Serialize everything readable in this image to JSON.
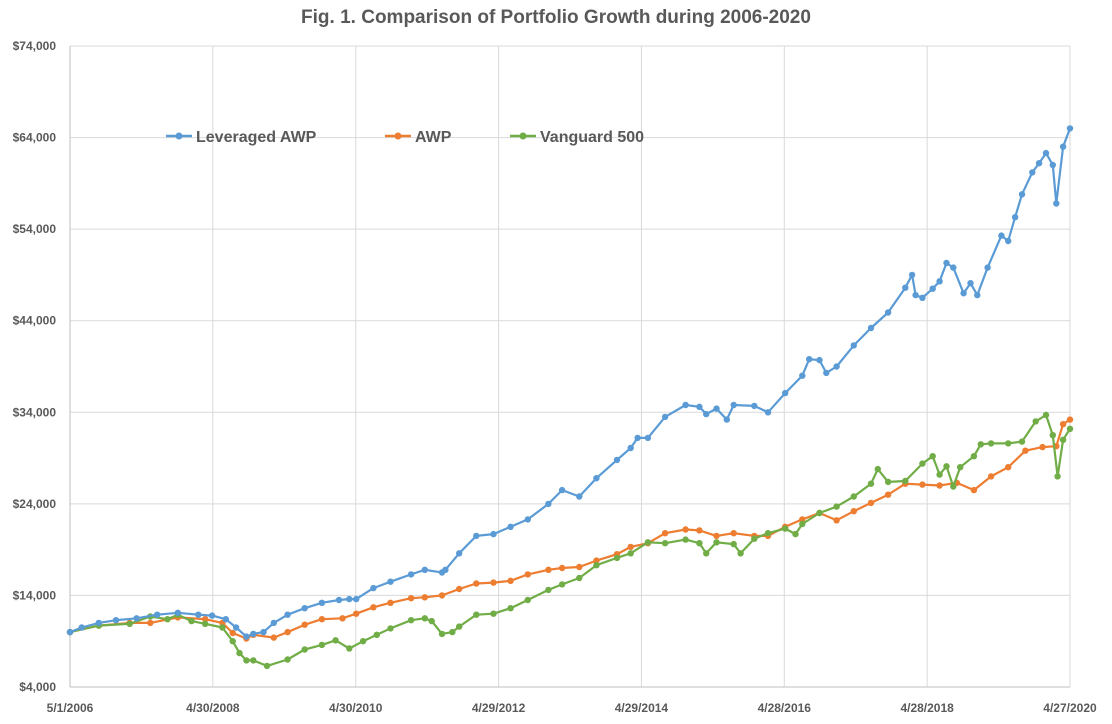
{
  "chart_data": {
    "type": "line",
    "title": "Fig. 1. Comparison of Portfolio Growth during 2006-2020",
    "xlabel": "",
    "ylabel": "",
    "x_start": "5/1/2006",
    "x_end": "4/27/2020",
    "ylim": [
      4000,
      74000
    ],
    "yticks": [
      4000,
      14000,
      24000,
      34000,
      44000,
      54000,
      64000,
      74000
    ],
    "ytick_labels": [
      "$4,000",
      "$14,000",
      "$24,000",
      "$34,000",
      "$44,000",
      "$54,000",
      "$64,000",
      "$74,000"
    ],
    "xtick_labels": [
      "5/1/2006",
      "4/30/2008",
      "4/30/2010",
      "4/29/2012",
      "4/29/2014",
      "4/28/2016",
      "4/28/2018",
      "4/27/2020"
    ],
    "grid": true,
    "legend_position": "top-left",
    "series": [
      {
        "name": "Leveraged AWP",
        "color": "#5b9bd5",
        "values": [
          [
            2006.33,
            10000
          ],
          [
            2006.5,
            10500
          ],
          [
            2006.75,
            11000
          ],
          [
            2007.0,
            11300
          ],
          [
            2007.3,
            11500
          ],
          [
            2007.6,
            11900
          ],
          [
            2007.9,
            12100
          ],
          [
            2008.2,
            11900
          ],
          [
            2008.4,
            11800
          ],
          [
            2008.6,
            11400
          ],
          [
            2008.75,
            10500
          ],
          [
            2008.9,
            9500
          ],
          [
            2009.0,
            9800
          ],
          [
            2009.15,
            10000
          ],
          [
            2009.3,
            11000
          ],
          [
            2009.5,
            11900
          ],
          [
            2009.75,
            12600
          ],
          [
            2010.0,
            13200
          ],
          [
            2010.25,
            13500
          ],
          [
            2010.4,
            13600
          ],
          [
            2010.5,
            13600
          ],
          [
            2010.75,
            14800
          ],
          [
            2011.0,
            15500
          ],
          [
            2011.3,
            16300
          ],
          [
            2011.5,
            16800
          ],
          [
            2011.75,
            16500
          ],
          [
            2011.8,
            16800
          ],
          [
            2012.0,
            18600
          ],
          [
            2012.25,
            20500
          ],
          [
            2012.5,
            20700
          ],
          [
            2012.75,
            21500
          ],
          [
            2013.0,
            22300
          ],
          [
            2013.3,
            24000
          ],
          [
            2013.5,
            25500
          ],
          [
            2013.75,
            24800
          ],
          [
            2014.0,
            26800
          ],
          [
            2014.3,
            28800
          ],
          [
            2014.5,
            30100
          ],
          [
            2014.6,
            31200
          ],
          [
            2014.75,
            31200
          ],
          [
            2015.0,
            33500
          ],
          [
            2015.3,
            34800
          ],
          [
            2015.5,
            34600
          ],
          [
            2015.6,
            33800
          ],
          [
            2015.75,
            34400
          ],
          [
            2015.9,
            33200
          ],
          [
            2016.0,
            34800
          ],
          [
            2016.3,
            34700
          ],
          [
            2016.5,
            34000
          ],
          [
            2016.75,
            36100
          ],
          [
            2017.0,
            38000
          ],
          [
            2017.1,
            39800
          ],
          [
            2017.25,
            39700
          ],
          [
            2017.35,
            38300
          ],
          [
            2017.5,
            39000
          ],
          [
            2017.75,
            41300
          ],
          [
            2018.0,
            43200
          ],
          [
            2018.25,
            44900
          ],
          [
            2018.5,
            47600
          ],
          [
            2018.6,
            49000
          ],
          [
            2018.65,
            46800
          ],
          [
            2018.75,
            46500
          ],
          [
            2018.9,
            47500
          ],
          [
            2019.0,
            48300
          ],
          [
            2019.1,
            50300
          ],
          [
            2019.2,
            49800
          ],
          [
            2019.35,
            47000
          ],
          [
            2019.45,
            48100
          ],
          [
            2019.55,
            46800
          ],
          [
            2019.7,
            49800
          ],
          [
            2019.9,
            53300
          ],
          [
            2020.0,
            52700
          ],
          [
            2020.1,
            55300
          ],
          [
            2020.2,
            57800
          ],
          [
            2020.35,
            60200
          ],
          [
            2020.45,
            61200
          ],
          [
            2020.55,
            62300
          ],
          [
            2020.65,
            61000
          ],
          [
            2020.7,
            56800
          ],
          [
            2020.8,
            63000
          ],
          [
            2020.9,
            65000
          ]
        ]
      },
      {
        "name": "AWP",
        "color": "#ed7d31",
        "values": [
          [
            2006.33,
            10000
          ],
          [
            2006.75,
            10700
          ],
          [
            2007.2,
            11000
          ],
          [
            2007.5,
            11000
          ],
          [
            2007.9,
            11600
          ],
          [
            2008.3,
            11400
          ],
          [
            2008.55,
            11000
          ],
          [
            2008.7,
            9900
          ],
          [
            2008.9,
            9300
          ],
          [
            2009.0,
            9700
          ],
          [
            2009.3,
            9400
          ],
          [
            2009.5,
            10000
          ],
          [
            2009.75,
            10800
          ],
          [
            2010.0,
            11400
          ],
          [
            2010.3,
            11500
          ],
          [
            2010.5,
            12000
          ],
          [
            2010.75,
            12700
          ],
          [
            2011.0,
            13200
          ],
          [
            2011.3,
            13700
          ],
          [
            2011.5,
            13800
          ],
          [
            2011.75,
            14000
          ],
          [
            2012.0,
            14700
          ],
          [
            2012.25,
            15300
          ],
          [
            2012.5,
            15400
          ],
          [
            2012.75,
            15600
          ],
          [
            2013.0,
            16300
          ],
          [
            2013.3,
            16800
          ],
          [
            2013.5,
            17000
          ],
          [
            2013.75,
            17100
          ],
          [
            2014.0,
            17800
          ],
          [
            2014.3,
            18500
          ],
          [
            2014.5,
            19300
          ],
          [
            2014.75,
            19700
          ],
          [
            2015.0,
            20800
          ],
          [
            2015.3,
            21200
          ],
          [
            2015.5,
            21100
          ],
          [
            2015.75,
            20500
          ],
          [
            2016.0,
            20800
          ],
          [
            2016.3,
            20500
          ],
          [
            2016.5,
            20500
          ],
          [
            2016.75,
            21500
          ],
          [
            2017.0,
            22300
          ],
          [
            2017.25,
            23000
          ],
          [
            2017.5,
            22200
          ],
          [
            2017.75,
            23200
          ],
          [
            2018.0,
            24100
          ],
          [
            2018.25,
            25000
          ],
          [
            2018.5,
            26200
          ],
          [
            2018.75,
            26100
          ],
          [
            2019.0,
            26000
          ],
          [
            2019.25,
            26300
          ],
          [
            2019.5,
            25500
          ],
          [
            2019.75,
            27000
          ],
          [
            2020.0,
            28000
          ],
          [
            2020.25,
            29800
          ],
          [
            2020.5,
            30200
          ],
          [
            2020.7,
            30300
          ],
          [
            2020.8,
            32700
          ],
          [
            2020.9,
            33200
          ]
        ]
      },
      {
        "name": "Vanguard 500",
        "color": "#70ad47",
        "values": [
          [
            2006.33,
            10000
          ],
          [
            2006.75,
            10700
          ],
          [
            2007.2,
            10900
          ],
          [
            2007.5,
            11700
          ],
          [
            2007.75,
            11400
          ],
          [
            2007.9,
            11900
          ],
          [
            2008.1,
            11200
          ],
          [
            2008.3,
            10900
          ],
          [
            2008.55,
            10500
          ],
          [
            2008.7,
            9000
          ],
          [
            2008.8,
            7700
          ],
          [
            2008.9,
            6900
          ],
          [
            2009.0,
            6900
          ],
          [
            2009.2,
            6300
          ],
          [
            2009.5,
            7000
          ],
          [
            2009.75,
            8100
          ],
          [
            2010.0,
            8600
          ],
          [
            2010.2,
            9100
          ],
          [
            2010.4,
            8200
          ],
          [
            2010.6,
            9000
          ],
          [
            2010.8,
            9700
          ],
          [
            2011.0,
            10400
          ],
          [
            2011.3,
            11300
          ],
          [
            2011.5,
            11500
          ],
          [
            2011.6,
            11200
          ],
          [
            2011.75,
            9800
          ],
          [
            2011.9,
            10000
          ],
          [
            2012.0,
            10600
          ],
          [
            2012.25,
            11900
          ],
          [
            2012.5,
            12000
          ],
          [
            2012.75,
            12600
          ],
          [
            2013.0,
            13500
          ],
          [
            2013.3,
            14600
          ],
          [
            2013.5,
            15200
          ],
          [
            2013.75,
            15900
          ],
          [
            2014.0,
            17300
          ],
          [
            2014.3,
            18100
          ],
          [
            2014.5,
            18600
          ],
          [
            2014.75,
            19800
          ],
          [
            2015.0,
            19700
          ],
          [
            2015.3,
            20100
          ],
          [
            2015.5,
            19700
          ],
          [
            2015.6,
            18600
          ],
          [
            2015.75,
            19800
          ],
          [
            2016.0,
            19600
          ],
          [
            2016.1,
            18600
          ],
          [
            2016.3,
            20200
          ],
          [
            2016.5,
            20800
          ],
          [
            2016.75,
            21300
          ],
          [
            2016.9,
            20700
          ],
          [
            2017.0,
            21800
          ],
          [
            2017.25,
            23000
          ],
          [
            2017.5,
            23700
          ],
          [
            2017.75,
            24800
          ],
          [
            2018.0,
            26200
          ],
          [
            2018.1,
            27800
          ],
          [
            2018.25,
            26400
          ],
          [
            2018.5,
            26500
          ],
          [
            2018.75,
            28400
          ],
          [
            2018.9,
            29200
          ],
          [
            2019.0,
            27200
          ],
          [
            2019.1,
            28100
          ],
          [
            2019.2,
            25900
          ],
          [
            2019.3,
            28000
          ],
          [
            2019.5,
            29200
          ],
          [
            2019.6,
            30500
          ],
          [
            2019.75,
            30600
          ],
          [
            2020.0,
            30600
          ],
          [
            2020.2,
            30800
          ],
          [
            2020.4,
            33000
          ],
          [
            2020.55,
            33700
          ],
          [
            2020.65,
            31500
          ],
          [
            2020.72,
            27000
          ],
          [
            2020.8,
            31000
          ],
          [
            2020.9,
            32200
          ]
        ]
      }
    ]
  }
}
